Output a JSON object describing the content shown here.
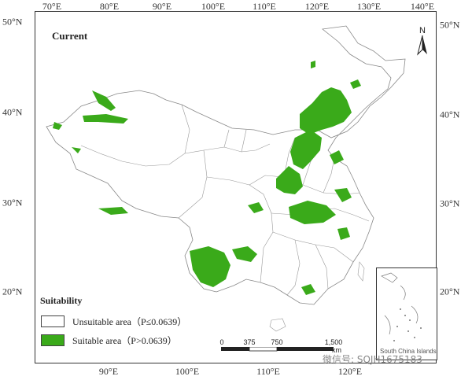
{
  "map": {
    "panel_title": "Current",
    "north_label": "N",
    "top_ticks": [
      "70°E",
      "80°E",
      "90°E",
      "100°E",
      "110°E",
      "120°E",
      "130°E",
      "140°E"
    ],
    "bottom_ticks": [
      "90°E",
      "100°E",
      "110°E",
      "120°E"
    ],
    "left_ticks": [
      "50°N",
      "40°N",
      "30°N",
      "20°N"
    ],
    "right_ticks": [
      "50°N",
      "40°N",
      "30°N",
      "20°N"
    ],
    "scale": {
      "labels": [
        "0",
        "375",
        "750",
        "1,500"
      ],
      "unit": "km"
    },
    "inset_label": "South China Islands"
  },
  "legend": {
    "title": "Suitability",
    "items": [
      {
        "label": "Unsuitable area（P≤0.0639）",
        "color": "#ffffff"
      },
      {
        "label": "Suitable area（P>0.0639）",
        "color": "#3aaa1a"
      }
    ]
  },
  "colors": {
    "suitable": "#3aaa1a",
    "boundary": "#888888",
    "frame": "#333333"
  },
  "watermark": "微信号: SQJH1675183"
}
